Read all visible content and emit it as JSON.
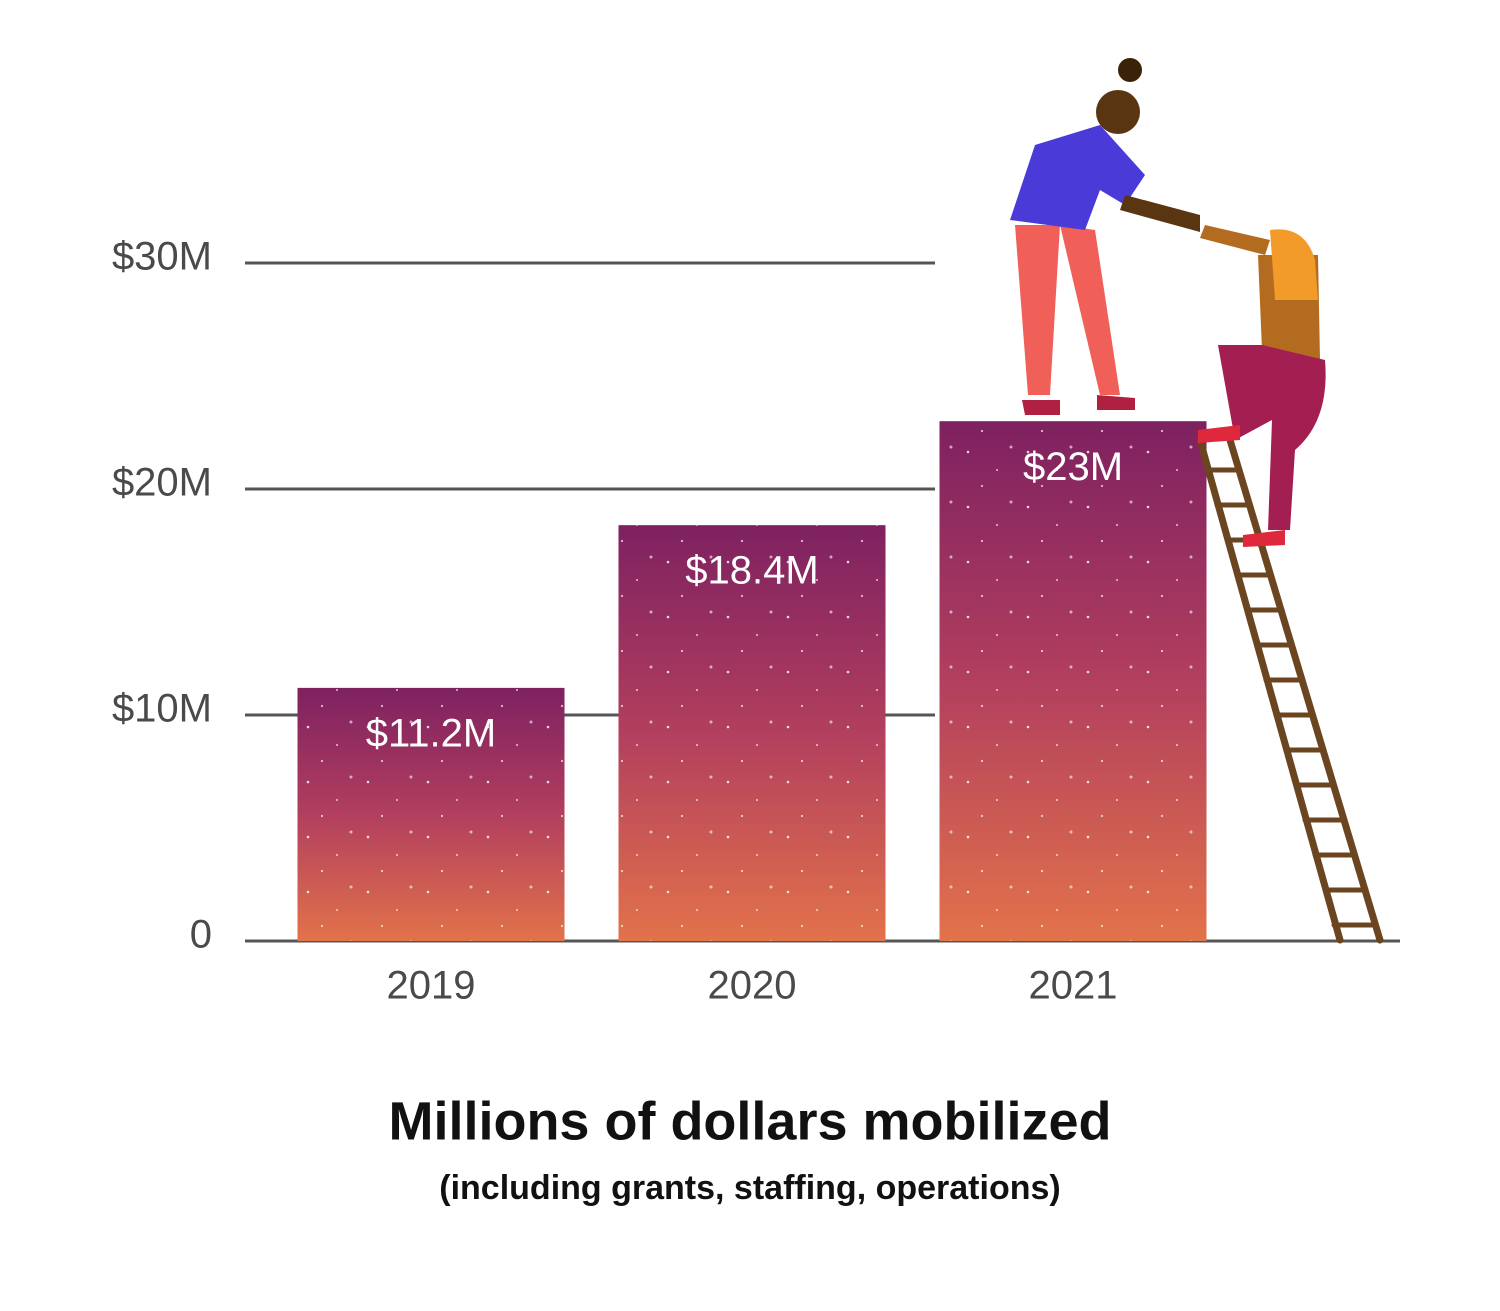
{
  "chart_data": {
    "type": "bar",
    "title": "Millions of dollars mobilized",
    "subtitle": "(including grants, staffing, operations)",
    "categories": [
      "2019",
      "2020",
      "2021"
    ],
    "values": [
      11.2,
      18.4,
      23
    ],
    "value_labels": [
      "$11.2M",
      "$18.4M",
      "$23M"
    ],
    "ylim": [
      0,
      30
    ],
    "yticks": [
      0,
      {
        "value": 10,
        "label": "$10M"
      },
      {
        "value": 20,
        "label": "$20M"
      },
      {
        "value": 30,
        "label": "$30M"
      }
    ],
    "grid": true
  }
}
